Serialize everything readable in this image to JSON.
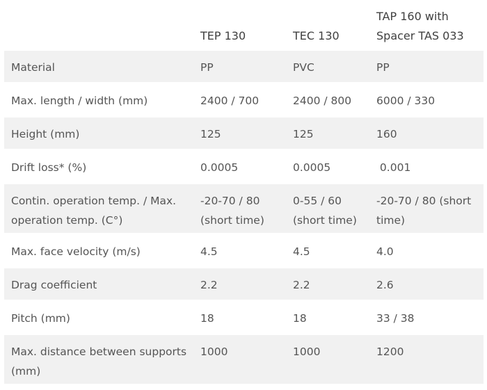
{
  "table": {
    "headers": [
      "",
      "TEP 130",
      "TEC 130",
      "TAP 160 with\nSpacer TAS 033"
    ],
    "rows": [
      {
        "label": "Material",
        "values": [
          "PP",
          "PVC",
          "PP"
        ]
      },
      {
        "label": "Max. length / width (mm)",
        "values": [
          "2400 / 700",
          "2400 / 800",
          "6000 / 330"
        ]
      },
      {
        "label": "Height (mm)",
        "values": [
          "125",
          "125",
          "160"
        ]
      },
      {
        "label": "Drift loss* (%)",
        "values": [
          "0.0005",
          "0.0005",
          " 0.001"
        ]
      },
      {
        "label": "Contin. operation temp. / Max.\noperation temp. (C°)",
        "values": [
          "-20-70 / 80\n(short time)",
          "0-55 / 60\n(short time)",
          "-20-70 / 80 (short\ntime)"
        ]
      },
      {
        "label": "Max. face velocity (m/s)",
        "values": [
          "4.5",
          "4.5",
          "4.0"
        ]
      },
      {
        "label": "Drag coefficient",
        "values": [
          "2.2",
          "2.2",
          "2.6"
        ]
      },
      {
        "label": "Pitch (mm)",
        "values": [
          "18",
          "18",
          "33 / 38"
        ]
      },
      {
        "label": "Max. distance between supports\n(mm)",
        "values": [
          "1000",
          "1000",
          "1200"
        ]
      }
    ]
  }
}
